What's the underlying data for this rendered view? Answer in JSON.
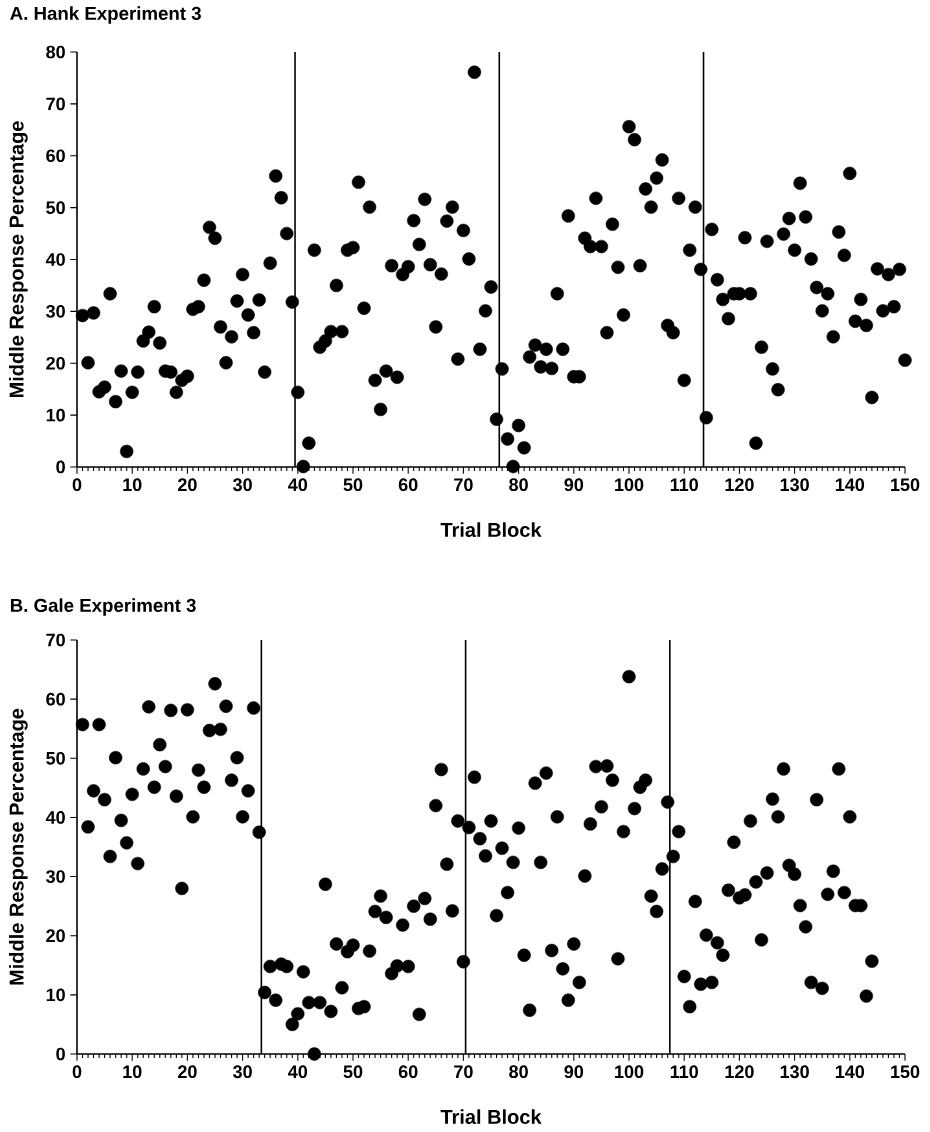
{
  "chart_data": [
    {
      "type": "scatter",
      "title": "A. Hank Experiment 3",
      "xlabel": "Trial Block",
      "ylabel": "Middle Response Percentage",
      "color": "#000000",
      "marker": "circle",
      "xlim": [
        0,
        150
      ],
      "ylim": [
        0,
        80
      ],
      "xticks": [
        0,
        10,
        20,
        30,
        40,
        50,
        60,
        70,
        80,
        90,
        100,
        110,
        120,
        130,
        140,
        150
      ],
      "yticks": [
        0,
        10,
        20,
        30,
        40,
        50,
        60,
        70,
        80
      ],
      "ref_lines": [
        {
          "axis": "x",
          "value": 39.5
        },
        {
          "axis": "x",
          "value": 76.5
        },
        {
          "axis": "x",
          "value": 113.5
        }
      ],
      "x": [
        1,
        2,
        3,
        4,
        5,
        6,
        7,
        8,
        9,
        10,
        11,
        12,
        13,
        14,
        15,
        16,
        17,
        18,
        19,
        20,
        21,
        22,
        23,
        24,
        25,
        26,
        27,
        28,
        29,
        30,
        31,
        32,
        33,
        34,
        35,
        36,
        37,
        38,
        39,
        40,
        41,
        42,
        43,
        44,
        45,
        46,
        47,
        48,
        49,
        50,
        51,
        52,
        53,
        54,
        55,
        56,
        57,
        58,
        59,
        60,
        61,
        62,
        63,
        64,
        65,
        66,
        67,
        68,
        69,
        70,
        71,
        72,
        73,
        74,
        75,
        76,
        77,
        78,
        79,
        80,
        81,
        82,
        83,
        84,
        85,
        86,
        87,
        88,
        89,
        90,
        91,
        92,
        93,
        94,
        95,
        96,
        97,
        98,
        99,
        100,
        101,
        102,
        103,
        104,
        105,
        106,
        107,
        108,
        109,
        110,
        111,
        112,
        113,
        114,
        115,
        116,
        117,
        118,
        119,
        120,
        121,
        122,
        123,
        124,
        125,
        126,
        127,
        128,
        129,
        130,
        131,
        132,
        133,
        134,
        135,
        136,
        137,
        138,
        139,
        140,
        141,
        142,
        143,
        144,
        145,
        146,
        147,
        148,
        149,
        150
      ],
      "values": [
        29.2,
        20.1,
        29.7,
        14.5,
        15.4,
        33.4,
        12.6,
        18.5,
        3.0,
        14.4,
        18.3,
        24.3,
        26.0,
        30.9,
        23.9,
        18.5,
        18.3,
        14.4,
        16.7,
        17.5,
        30.4,
        30.9,
        36.0,
        46.2,
        44.1,
        27.0,
        20.1,
        25.1,
        32.0,
        37.1,
        29.3,
        25.9,
        32.2,
        18.3,
        39.3,
        56.1,
        51.9,
        45.0,
        31.8,
        14.4,
        0.1,
        4.6,
        41.8,
        23.1,
        24.3,
        26.1,
        35.0,
        26.1,
        41.8,
        42.3,
        54.9,
        30.6,
        50.1,
        16.7,
        11.1,
        18.5,
        38.8,
        17.3,
        37.1,
        38.6,
        47.5,
        42.9,
        51.6,
        39.0,
        27.0,
        37.2,
        47.4,
        50.1,
        20.8,
        45.6,
        40.1,
        76.1,
        22.7,
        30.1,
        34.7,
        9.2,
        18.9,
        5.4,
        0.1,
        8.0,
        3.7,
        21.2,
        23.5,
        19.3,
        22.7,
        19.0,
        33.4,
        22.7,
        48.4,
        17.4,
        17.4,
        44.1,
        42.5,
        51.8,
        42.5,
        25.9,
        46.8,
        38.5,
        29.3,
        65.6,
        63.1,
        38.8,
        53.6,
        50.1,
        55.7,
        59.2,
        27.3,
        25.9,
        51.8,
        16.7,
        41.8,
        50.1,
        38.1,
        9.5,
        45.8,
        36.1,
        32.3,
        28.6,
        33.4,
        33.4,
        44.2,
        33.4,
        4.6,
        23.1,
        43.5,
        18.9,
        14.9,
        44.9,
        47.9,
        41.8,
        54.7,
        48.2,
        40.1,
        34.6,
        30.1,
        33.4,
        25.1,
        45.3,
        40.8,
        56.6,
        28.1,
        32.3,
        27.3,
        13.4,
        38.2,
        30.1,
        37.1,
        30.9,
        38.1,
        20.6
      ]
    },
    {
      "type": "scatter",
      "title": "B. Gale Experiment 3",
      "xlabel": "Trial Block",
      "ylabel": "Middle Response Percentage",
      "color": "#000000",
      "marker": "circle",
      "xlim": [
        0,
        150
      ],
      "ylim": [
        0,
        70
      ],
      "xticks": [
        0,
        10,
        20,
        30,
        40,
        50,
        60,
        70,
        80,
        90,
        100,
        110,
        120,
        130,
        140,
        150
      ],
      "yticks": [
        0,
        10,
        20,
        30,
        40,
        50,
        60,
        70
      ],
      "ref_lines": [
        {
          "axis": "x",
          "value": 33.4
        },
        {
          "axis": "x",
          "value": 70.4
        },
        {
          "axis": "x",
          "value": 107.4
        }
      ],
      "x": [
        1,
        2,
        3,
        4,
        5,
        6,
        7,
        8,
        9,
        10,
        11,
        12,
        13,
        14,
        15,
        16,
        17,
        18,
        19,
        20,
        21,
        22,
        23,
        24,
        25,
        26,
        27,
        28,
        29,
        30,
        31,
        32,
        33,
        34,
        35,
        36,
        37,
        38,
        39,
        40,
        41,
        42,
        43,
        44,
        45,
        46,
        47,
        48,
        49,
        50,
        51,
        52,
        53,
        54,
        55,
        56,
        57,
        58,
        59,
        60,
        61,
        62,
        63,
        64,
        65,
        66,
        67,
        68,
        69,
        70,
        71,
        72,
        73,
        74,
        75,
        76,
        77,
        78,
        79,
        80,
        81,
        82,
        83,
        84,
        85,
        86,
        87,
        88,
        89,
        90,
        91,
        92,
        93,
        94,
        95,
        96,
        97,
        98,
        99,
        100,
        101,
        102,
        103,
        104,
        105,
        106,
        107,
        108,
        109,
        110,
        111,
        112,
        113,
        114,
        115,
        116,
        117,
        118,
        119,
        120,
        121,
        122,
        123,
        124,
        125,
        126,
        127,
        128,
        129,
        130,
        131,
        132,
        133,
        134,
        135,
        136,
        137,
        138,
        139,
        140,
        141,
        142,
        143,
        144
      ],
      "values": [
        55.7,
        38.4,
        44.5,
        55.7,
        43.0,
        33.4,
        50.1,
        39.5,
        35.7,
        43.9,
        32.2,
        48.2,
        58.7,
        45.1,
        52.3,
        48.6,
        58.1,
        43.6,
        28.0,
        58.2,
        40.1,
        48.0,
        45.1,
        54.7,
        62.6,
        54.9,
        58.8,
        46.3,
        50.1,
        40.1,
        44.5,
        58.5,
        37.5,
        10.4,
        14.8,
        9.1,
        15.2,
        14.8,
        5.0,
        6.8,
        13.9,
        8.7,
        0.0,
        8.7,
        28.7,
        7.2,
        18.6,
        11.2,
        17.3,
        18.4,
        7.7,
        8.0,
        17.4,
        24.1,
        26.7,
        23.1,
        13.6,
        14.9,
        21.8,
        14.8,
        25.0,
        6.7,
        26.3,
        22.8,
        42.0,
        48.1,
        32.1,
        24.2,
        39.4,
        15.6,
        38.3,
        46.8,
        36.4,
        33.5,
        39.4,
        23.4,
        34.8,
        27.3,
        32.4,
        38.2,
        16.7,
        7.4,
        45.8,
        32.4,
        47.5,
        17.5,
        40.1,
        14.4,
        9.1,
        18.6,
        12.1,
        30.1,
        38.9,
        48.6,
        41.8,
        48.7,
        46.3,
        16.1,
        37.6,
        63.8,
        41.5,
        45.1,
        46.3,
        26.7,
        24.1,
        31.3,
        42.6,
        33.4,
        37.6,
        13.1,
        8.0,
        25.8,
        11.8,
        20.1,
        12.1,
        18.8,
        16.7,
        27.7,
        35.8,
        26.4,
        26.9,
        39.4,
        29.1,
        19.3,
        30.6,
        43.1,
        40.1,
        48.2,
        31.9,
        30.4,
        25.1,
        21.5,
        12.1,
        43.0,
        11.1,
        27.0,
        30.9,
        48.2,
        27.3,
        40.1,
        25.1,
        25.1,
        9.8,
        15.7
      ]
    }
  ]
}
